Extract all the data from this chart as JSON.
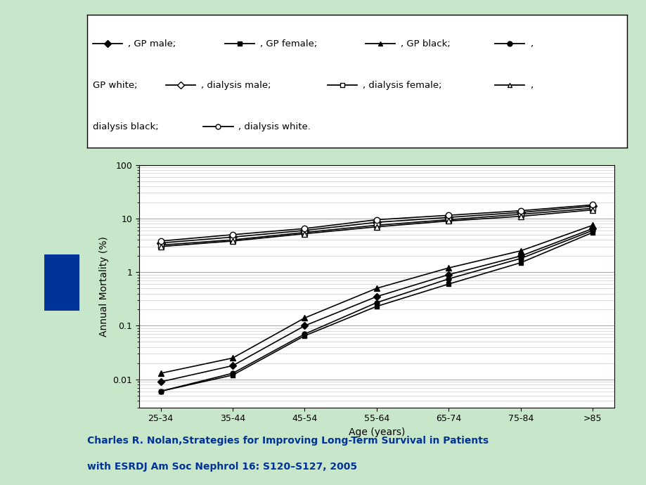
{
  "age_labels": [
    "25-34",
    "35-44",
    "45-54",
    "55-64",
    "65-74",
    "75-84",
    ">85"
  ],
  "age_x": [
    0,
    1,
    2,
    3,
    4,
    5,
    6
  ],
  "gp_male": [
    0.009,
    0.018,
    0.1,
    0.35,
    0.9,
    2.0,
    6.5
  ],
  "gp_female": [
    0.006,
    0.012,
    0.065,
    0.23,
    0.6,
    1.5,
    5.5
  ],
  "gp_black": [
    0.013,
    0.025,
    0.14,
    0.5,
    1.2,
    2.5,
    7.5
  ],
  "gp_white": [
    0.006,
    0.013,
    0.07,
    0.27,
    0.75,
    1.8,
    6.0
  ],
  "dialysis_male": [
    3.5,
    4.5,
    6.0,
    8.5,
    10.5,
    13.0,
    17.0
  ],
  "dialysis_female": [
    3.2,
    4.0,
    5.5,
    7.5,
    9.5,
    12.0,
    15.5
  ],
  "dialysis_black": [
    3.0,
    3.8,
    5.2,
    7.0,
    9.0,
    11.0,
    14.5
  ],
  "dialysis_white": [
    3.8,
    5.0,
    6.5,
    9.5,
    11.5,
    14.0,
    18.0
  ],
  "plot_bg_color": "#ffffff",
  "outer_bg": "#c8e6c9",
  "ylabel": "Annual Mortality (%)",
  "xlabel": "Age (years)",
  "citation_line1": "Charles R. Nolan,Strategies for Improving Long-Term Survival in Patients",
  "citation_line2": "with ESRDJ Am Soc Nephrol 16: S120–S127, 2005",
  "citation_color": "#003399",
  "grid_color_major": "#aaaaaa",
  "grid_color_minor": "#cccccc",
  "blue_rect_color": "#003399"
}
